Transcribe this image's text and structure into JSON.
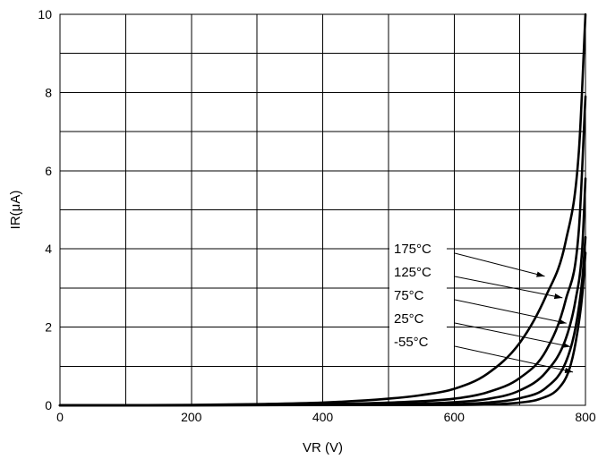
{
  "chart_data": {
    "type": "line",
    "xlabel": "VR (V)",
    "ylabel": "IR(μA)",
    "xlim": [
      0,
      800
    ],
    "ylim": [
      0,
      10
    ],
    "xticks": [
      0,
      200,
      400,
      600,
      800
    ],
    "yticks": [
      0,
      2,
      4,
      6,
      8,
      10
    ],
    "x_grid_step": 100,
    "y_grid_step": 1,
    "grid": true,
    "series": [
      {
        "name": "175°C",
        "points": [
          [
            0,
            0
          ],
          [
            200,
            0.01
          ],
          [
            300,
            0.03
          ],
          [
            400,
            0.07
          ],
          [
            500,
            0.17
          ],
          [
            550,
            0.26
          ],
          [
            600,
            0.42
          ],
          [
            650,
            0.8
          ],
          [
            700,
            1.6
          ],
          [
            740,
            2.8
          ],
          [
            770,
            4.2
          ],
          [
            790,
            6.5
          ],
          [
            800,
            10
          ]
        ]
      },
      {
        "name": "125°C",
        "points": [
          [
            0,
            0
          ],
          [
            300,
            0.01
          ],
          [
            400,
            0.03
          ],
          [
            500,
            0.07
          ],
          [
            600,
            0.17
          ],
          [
            650,
            0.33
          ],
          [
            700,
            0.7
          ],
          [
            740,
            1.4
          ],
          [
            770,
            2.7
          ],
          [
            790,
            4.5
          ],
          [
            800,
            7.9
          ]
        ]
      },
      {
        "name": "75°C",
        "points": [
          [
            0,
            0
          ],
          [
            400,
            0.01
          ],
          [
            500,
            0.03
          ],
          [
            600,
            0.08
          ],
          [
            650,
            0.16
          ],
          [
            700,
            0.38
          ],
          [
            740,
            0.85
          ],
          [
            770,
            1.7
          ],
          [
            785,
            2.7
          ],
          [
            795,
            4.0
          ],
          [
            800,
            5.8
          ]
        ]
      },
      {
        "name": "25°C",
        "points": [
          [
            0,
            0
          ],
          [
            500,
            0.01
          ],
          [
            600,
            0.03
          ],
          [
            650,
            0.07
          ],
          [
            700,
            0.18
          ],
          [
            740,
            0.45
          ],
          [
            770,
            1.1
          ],
          [
            785,
            2.0
          ],
          [
            795,
            3.2
          ],
          [
            800,
            4.3
          ]
        ]
      },
      {
        "name": "-55°C",
        "points": [
          [
            0,
            0
          ],
          [
            600,
            0.01
          ],
          [
            650,
            0.02
          ],
          [
            700,
            0.07
          ],
          [
            730,
            0.16
          ],
          [
            760,
            0.45
          ],
          [
            775,
            0.9
          ],
          [
            785,
            1.6
          ],
          [
            795,
            2.8
          ],
          [
            800,
            3.9
          ]
        ]
      }
    ],
    "annotations": [
      {
        "text": "175°C",
        "target": [
          738,
          3.3
        ]
      },
      {
        "text": "125°C",
        "target": [
          765,
          2.75
        ]
      },
      {
        "text": "75°C",
        "target": [
          771,
          2.1
        ]
      },
      {
        "text": "25°C",
        "target": [
          777,
          1.5
        ]
      },
      {
        "text": "-55°C",
        "target": [
          781,
          0.85
        ]
      }
    ]
  }
}
